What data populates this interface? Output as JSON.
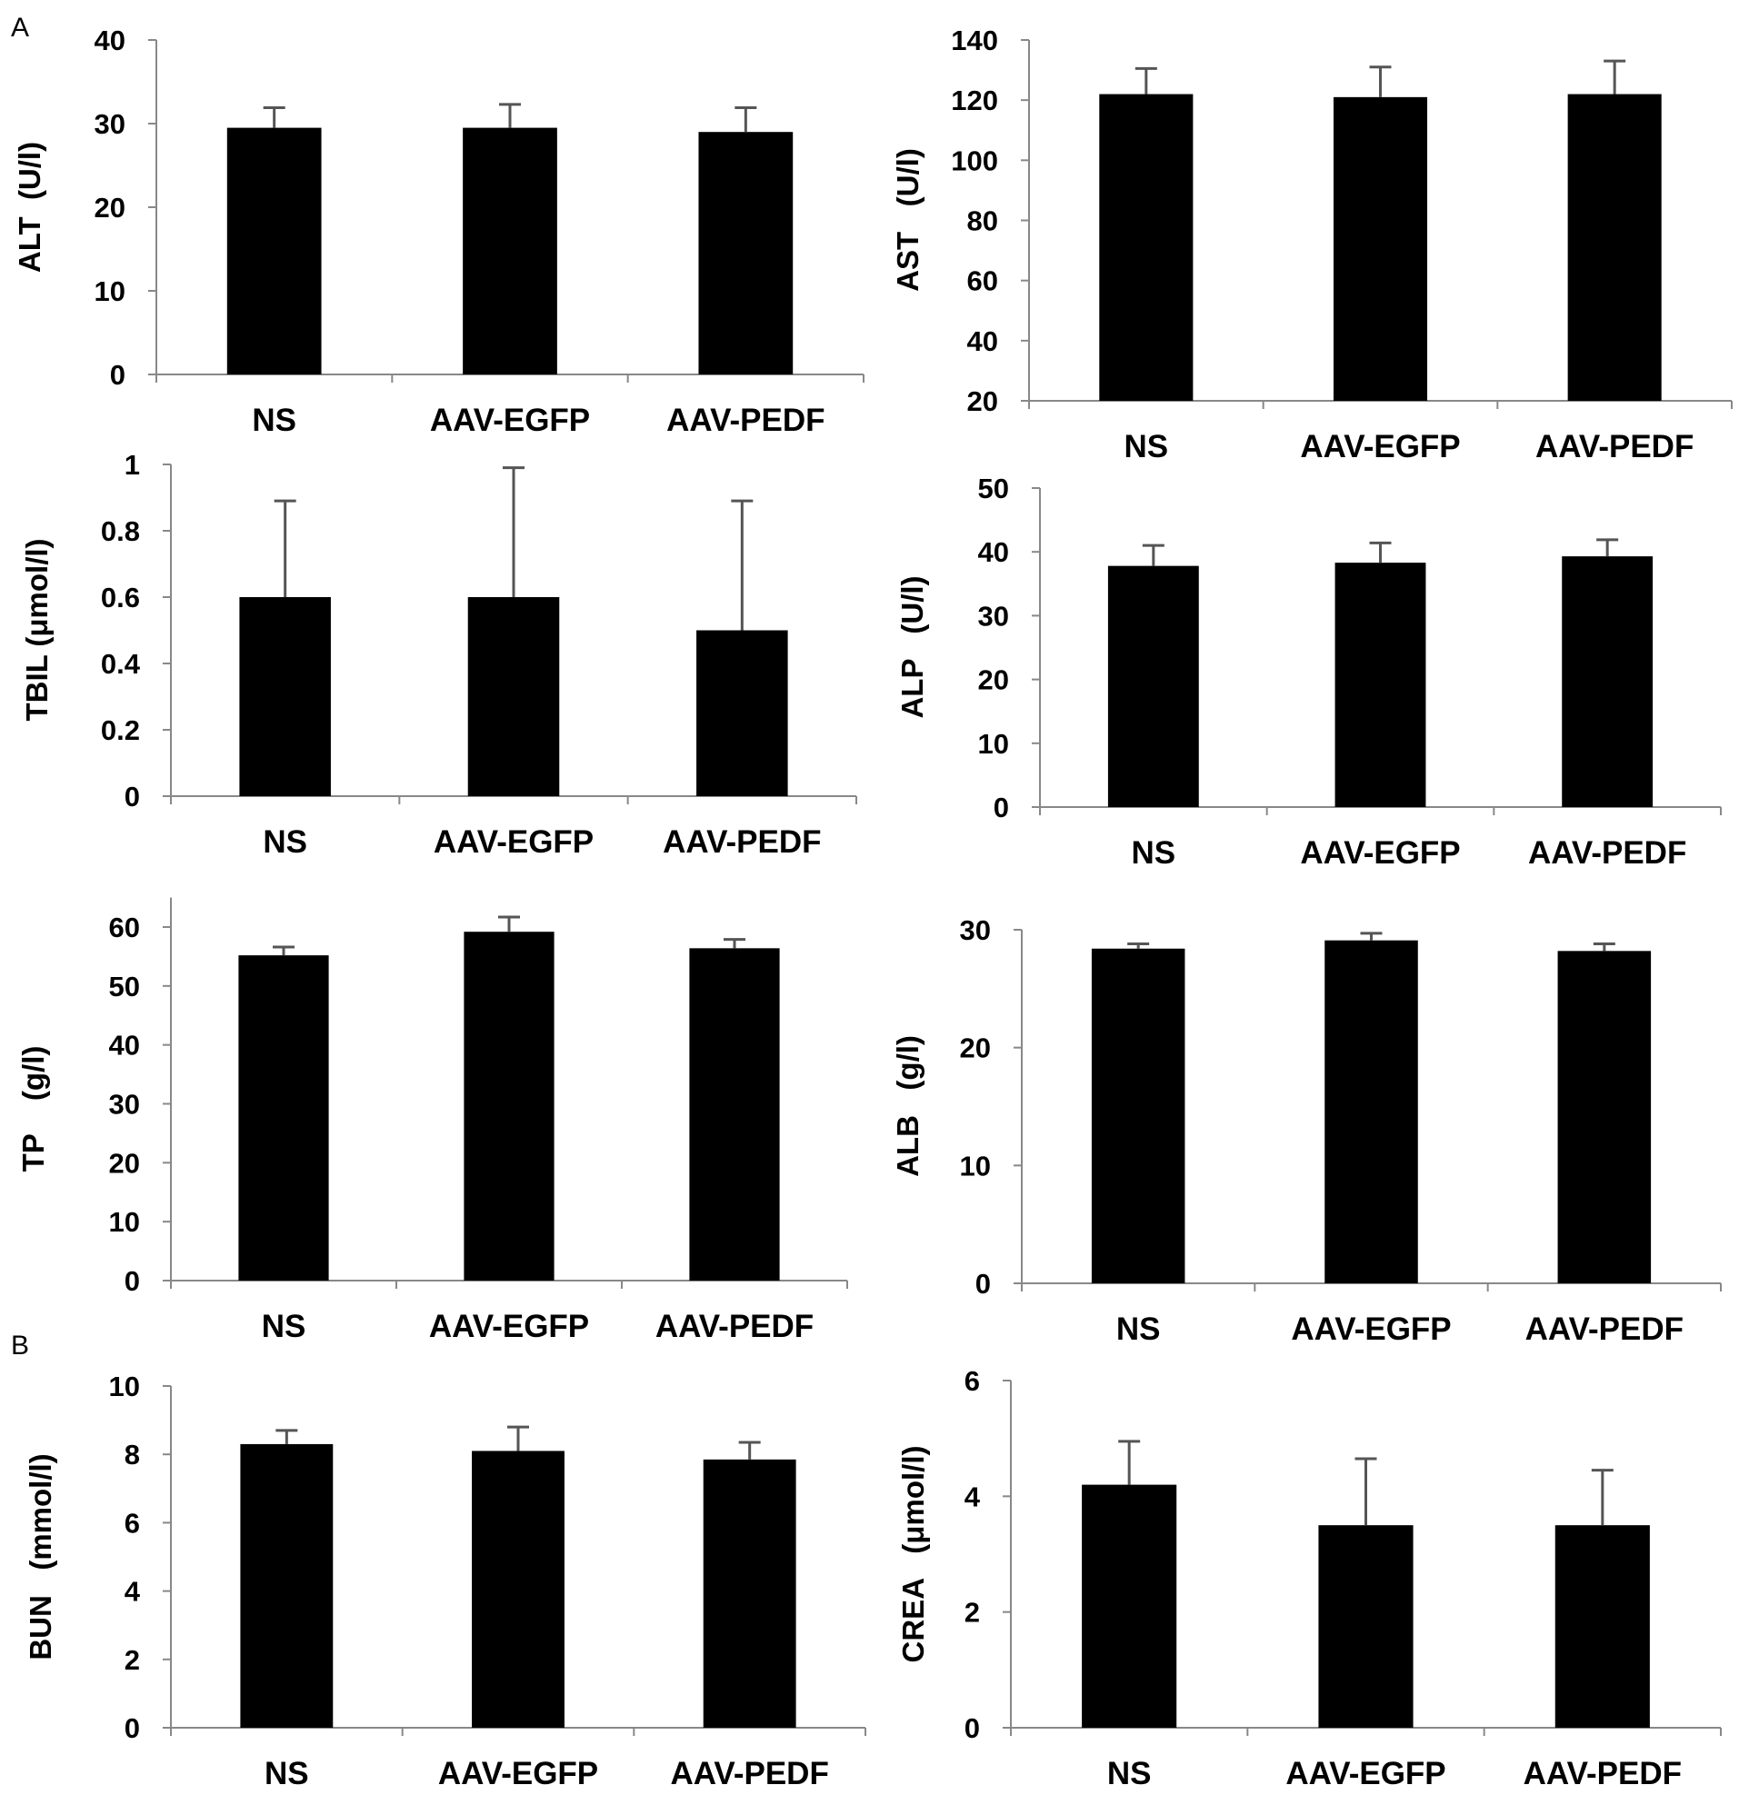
{
  "panel_labels": [
    "A",
    "B"
  ],
  "chart_data": [
    {
      "type": "bar",
      "ylabel": "ALT  (U/l)",
      "categories": [
        "NS",
        "AAV-EGFP",
        "AAV-PEDF"
      ],
      "values": [
        29.5,
        29.5,
        29.0
      ],
      "errors": [
        2.4,
        2.8,
        2.9
      ],
      "ylim": [
        0,
        40
      ],
      "yticks": [
        "0",
        "10",
        "20",
        "30",
        "40"
      ],
      "bar_color": "#000000"
    },
    {
      "type": "bar",
      "ylabel": "AST   (U/l)",
      "categories": [
        "NS",
        "AAV-EGFP",
        "AAV-PEDF"
      ],
      "values": [
        122,
        121,
        122
      ],
      "errors": [
        8.5,
        10,
        11
      ],
      "ylim": [
        20,
        140
      ],
      "yticks": [
        "20",
        "40",
        "60",
        "80",
        "100",
        "120",
        "140"
      ],
      "bar_color": "#000000"
    },
    {
      "type": "bar",
      "ylabel": "TBIL (μmol/l)",
      "categories": [
        "NS",
        "AAV-EGFP",
        "AAV-PEDF"
      ],
      "values": [
        0.6,
        0.6,
        0.5
      ],
      "errors": [
        0.29,
        0.39,
        0.39
      ],
      "ylim": [
        0,
        1
      ],
      "yticks": [
        "0",
        "0.2",
        "0.4",
        "0.6",
        "0.8",
        "1"
      ],
      "bar_color": "#000000"
    },
    {
      "type": "bar",
      "ylabel": "ALP   (U/l)",
      "categories": [
        "NS",
        "AAV-EGFP",
        "AAV-PEDF"
      ],
      "values": [
        37.8,
        38.3,
        39.3
      ],
      "errors": [
        3.2,
        3.1,
        2.6
      ],
      "ylim": [
        0,
        50
      ],
      "yticks": [
        "0",
        "10",
        "20",
        "30",
        "40",
        "50"
      ],
      "bar_color": "#000000"
    },
    {
      "type": "bar",
      "ylabel": "TP    (g/l)",
      "categories": [
        "NS",
        "AAV-EGFP",
        "AAV-PEDF"
      ],
      "values": [
        55.2,
        59.2,
        56.4
      ],
      "errors": [
        1.4,
        2.5,
        1.5
      ],
      "ylim": [
        0,
        65
      ],
      "yticks": [
        "0",
        "10",
        "20",
        "30",
        "40",
        "50",
        "60"
      ],
      "bar_color": "#000000"
    },
    {
      "type": "bar",
      "ylabel": "ALB   (g/l)",
      "categories": [
        "NS",
        "AAV-EGFP",
        "AAV-PEDF"
      ],
      "values": [
        28.4,
        29.1,
        28.2
      ],
      "errors": [
        0.4,
        0.6,
        0.6
      ],
      "ylim": [
        0,
        30
      ],
      "yticks": [
        "0",
        "10",
        "20",
        "30"
      ],
      "bar_color": "#000000"
    },
    {
      "type": "bar",
      "ylabel": "BUN   (mmol/l)",
      "categories": [
        "NS",
        "AAV-EGFP",
        "AAV-PEDF"
      ],
      "values": [
        8.3,
        8.1,
        7.85
      ],
      "errors": [
        0.4,
        0.7,
        0.5
      ],
      "ylim": [
        0,
        10
      ],
      "yticks": [
        "0",
        "2",
        "4",
        "6",
        "8",
        "10"
      ],
      "bar_color": "#000000"
    },
    {
      "type": "bar",
      "ylabel": "CREA   (μmol/l)",
      "categories": [
        "NS",
        "AAV-EGFP",
        "AAV-PEDF"
      ],
      "values": [
        4.2,
        3.5,
        3.5
      ],
      "errors": [
        0.75,
        1.15,
        0.95
      ],
      "ylim": [
        0,
        6
      ],
      "yticks": [
        "0",
        "2",
        "4",
        "6"
      ],
      "bar_color": "#000000"
    }
  ]
}
